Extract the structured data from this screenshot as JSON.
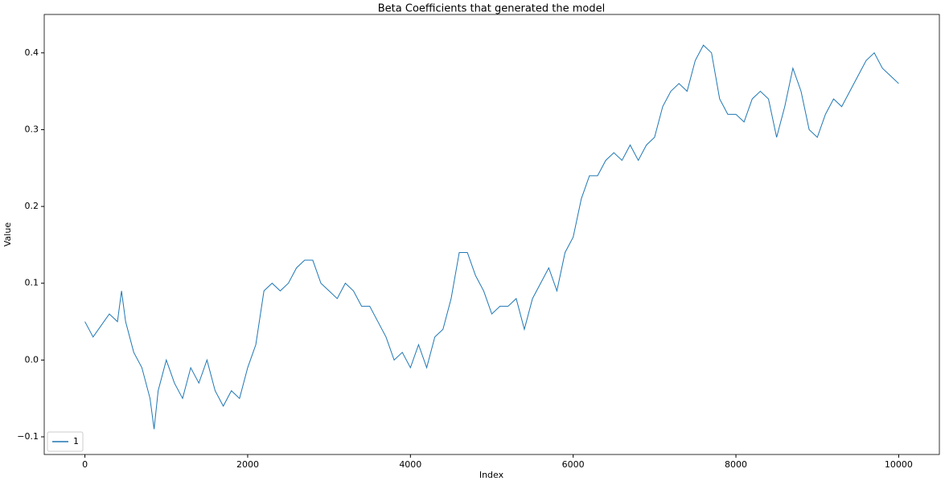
{
  "chart_data": {
    "type": "line",
    "title": "Beta Coefficients that generated the model",
    "xlabel": "Index",
    "ylabel": "Value",
    "x": [
      0,
      100,
      200,
      300,
      400,
      450,
      500,
      600,
      700,
      800,
      850,
      900,
      1000,
      1100,
      1200,
      1300,
      1400,
      1500,
      1600,
      1700,
      1800,
      1900,
      2000,
      2100,
      2200,
      2300,
      2400,
      2500,
      2600,
      2700,
      2800,
      2900,
      3000,
      3100,
      3200,
      3300,
      3400,
      3500,
      3600,
      3700,
      3800,
      3900,
      4000,
      4100,
      4200,
      4300,
      4400,
      4500,
      4600,
      4700,
      4800,
      4900,
      5000,
      5100,
      5200,
      5300,
      5400,
      5500,
      5600,
      5700,
      5800,
      5900,
      6000,
      6100,
      6200,
      6300,
      6400,
      6500,
      6600,
      6700,
      6800,
      6900,
      7000,
      7100,
      7200,
      7300,
      7400,
      7500,
      7600,
      7700,
      7800,
      7900,
      8000,
      8100,
      8200,
      8300,
      8400,
      8500,
      8600,
      8700,
      8800,
      8900,
      9000,
      9100,
      9200,
      9300,
      9400,
      9500,
      9600,
      9700,
      9800,
      9900,
      10000
    ],
    "series": [
      {
        "name": "1",
        "color": "#1f77b4",
        "values": [
          0.05,
          0.03,
          0.045,
          0.06,
          0.05,
          0.09,
          0.05,
          0.01,
          -0.01,
          -0.05,
          -0.09,
          -0.04,
          0.0,
          -0.03,
          -0.05,
          -0.01,
          -0.03,
          0.0,
          -0.04,
          -0.06,
          -0.04,
          -0.05,
          -0.01,
          0.02,
          0.09,
          0.1,
          0.09,
          0.1,
          0.12,
          0.13,
          0.13,
          0.1,
          0.09,
          0.08,
          0.1,
          0.09,
          0.07,
          0.07,
          0.05,
          0.03,
          0.0,
          0.01,
          -0.01,
          0.02,
          -0.01,
          0.03,
          0.04,
          0.08,
          0.14,
          0.14,
          0.11,
          0.09,
          0.06,
          0.07,
          0.07,
          0.08,
          0.04,
          0.08,
          0.1,
          0.12,
          0.09,
          0.14,
          0.16,
          0.21,
          0.24,
          0.24,
          0.26,
          0.27,
          0.26,
          0.28,
          0.26,
          0.28,
          0.29,
          0.33,
          0.35,
          0.36,
          0.35,
          0.39,
          0.41,
          0.4,
          0.34,
          0.32,
          0.32,
          0.31,
          0.34,
          0.35,
          0.34,
          0.29,
          0.33,
          0.38,
          0.35,
          0.3,
          0.29,
          0.32,
          0.34,
          0.33,
          0.35,
          0.37,
          0.39,
          0.4,
          0.38,
          0.37,
          0.36
        ]
      }
    ],
    "xlim": [
      -500,
      10500
    ],
    "xticks": [
      0,
      2000,
      4000,
      6000,
      8000,
      10000
    ],
    "ylim": [
      -0.123,
      0.45
    ],
    "yticks": [
      {
        "value": -0.1,
        "label": "−0.1"
      },
      {
        "value": 0,
        "label": "0.0"
      },
      0.1,
      0.2,
      0.3,
      0.4
    ],
    "legend": "lower left",
    "grid": false
  }
}
